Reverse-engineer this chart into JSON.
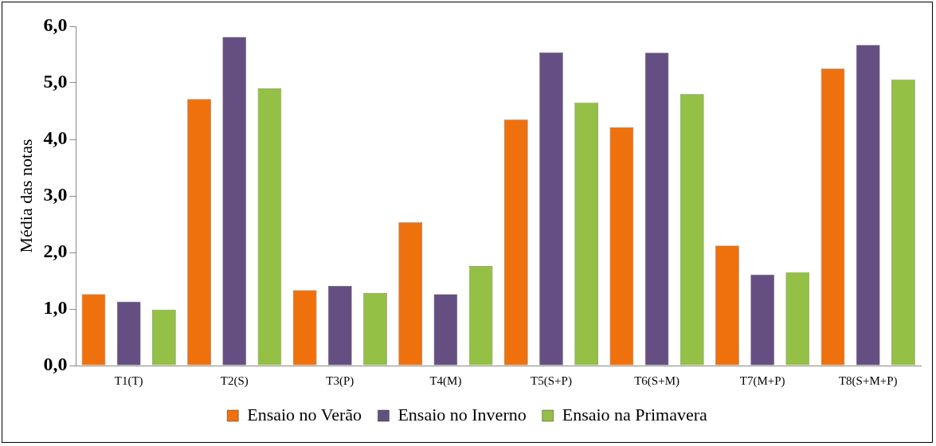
{
  "chart_data": {
    "type": "bar",
    "ylabel": "Média das notas",
    "categories": [
      "T1(T)",
      "T2(S)",
      "T3(P)",
      "T4(M)",
      "T5(S+P)",
      "T6(S+M)",
      "T7(M+P)",
      "T8(S+M+P)"
    ],
    "series": [
      {
        "name": "Ensaio no Verão",
        "color": "#ef710d",
        "values": [
          1.26,
          4.71,
          1.33,
          2.53,
          4.35,
          4.21,
          2.12,
          5.25
        ]
      },
      {
        "name": "Ensaio no Inverno",
        "color": "#654f82",
        "values": [
          1.13,
          5.81,
          1.41,
          1.26,
          5.54,
          5.53,
          1.61,
          5.67
        ]
      },
      {
        "name": "Ensaio na Primavera",
        "color": "#94c045",
        "values": [
          0.99,
          4.9,
          1.28,
          1.76,
          4.65,
          4.8,
          1.65,
          5.06
        ]
      }
    ],
    "ylim": [
      0,
      6
    ],
    "yticks": [
      {
        "value": 0,
        "label": "0,0"
      },
      {
        "value": 1,
        "label": "1,0"
      },
      {
        "value": 2,
        "label": "2,0"
      },
      {
        "value": 3,
        "label": "3,0"
      },
      {
        "value": 4,
        "label": "4,0"
      },
      {
        "value": 5,
        "label": "5,0"
      },
      {
        "value": 6,
        "label": "6,0"
      }
    ],
    "grid": false,
    "legend": "bottom"
  }
}
